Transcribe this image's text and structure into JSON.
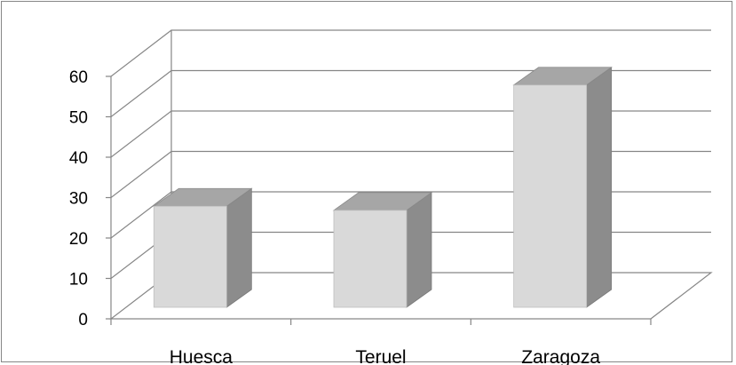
{
  "chart_data": {
    "type": "bar",
    "title": "",
    "xlabel": "",
    "ylabel": "",
    "categories": [
      "Huesca",
      "Teruel",
      "Zaragoza"
    ],
    "values": [
      25,
      24,
      55
    ],
    "ylim": [
      0,
      60
    ],
    "yticks": [
      "0",
      "10",
      "20",
      "30",
      "40",
      "50",
      "60"
    ],
    "grid": true,
    "legend": "none",
    "style": "3d-column",
    "colors": {
      "front": "#d9d9d9",
      "top": "#a6a6a6",
      "side": "#8c8c8c",
      "grid": "#868686",
      "axis": "#868686"
    }
  }
}
